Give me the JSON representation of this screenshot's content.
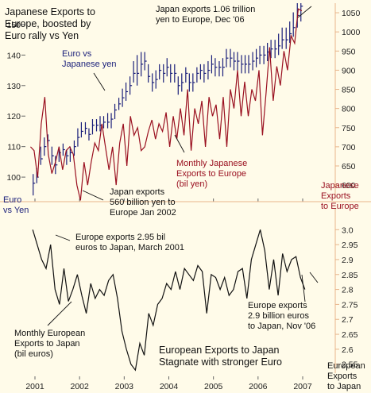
{
  "chart_data": [
    {
      "type": "line",
      "title": "Japanese Exports to Europe, boosted by Euro rally vs Yen",
      "x_ticks": [
        "2001",
        "2002",
        "2003",
        "2004",
        "2005",
        "2006",
        "2007"
      ],
      "left_axis": {
        "label": "Euro vs Yen",
        "ticks": [
          100,
          110,
          120,
          130,
          140,
          150
        ],
        "ylim": [
          93,
          157
        ]
      },
      "right_axis": {
        "label": "Japanese Exports to Europe",
        "ticks": [
          600,
          650,
          700,
          750,
          800,
          850,
          900,
          950,
          1000,
          1050
        ],
        "ylim": [
          565,
          1075
        ]
      },
      "series": [
        {
          "name": "Euro vs Japanese yen",
          "axis": "left",
          "color": "#1a1f7a",
          "style": "ohlc",
          "x": [
            2000.96,
            2001.04,
            2001.13,
            2001.21,
            2001.29,
            2001.38,
            2001.46,
            2001.54,
            2001.63,
            2001.71,
            2001.79,
            2001.88,
            2001.96,
            2002.04,
            2002.13,
            2002.21,
            2002.29,
            2002.38,
            2002.46,
            2002.54,
            2002.63,
            2002.71,
            2002.79,
            2002.88,
            2002.96,
            2003.04,
            2003.13,
            2003.21,
            2003.29,
            2003.38,
            2003.46,
            2003.54,
            2003.63,
            2003.71,
            2003.79,
            2003.88,
            2003.96,
            2004.04,
            2004.13,
            2004.21,
            2004.29,
            2004.38,
            2004.46,
            2004.54,
            2004.63,
            2004.71,
            2004.79,
            2004.88,
            2004.96,
            2005.04,
            2005.13,
            2005.21,
            2005.29,
            2005.38,
            2005.46,
            2005.54,
            2005.63,
            2005.71,
            2005.79,
            2005.88,
            2005.96,
            2006.04,
            2006.13,
            2006.21,
            2006.29,
            2006.38,
            2006.46,
            2006.54,
            2006.63,
            2006.71,
            2006.79,
            2006.88,
            2006.96
          ],
          "values": [
            98,
            100,
            106,
            110,
            112,
            107,
            104,
            108,
            109,
            107,
            108,
            110,
            113,
            115,
            116,
            114,
            117,
            117,
            117,
            118,
            118,
            119,
            122,
            124,
            126,
            128,
            130,
            134,
            134,
            137,
            138,
            133,
            131,
            132,
            135,
            134,
            136,
            134,
            134,
            130,
            131,
            134,
            131,
            131,
            134,
            135,
            134,
            135,
            137,
            136,
            136,
            136,
            139,
            139,
            138,
            138,
            137,
            137,
            137,
            138,
            139,
            140,
            140,
            141,
            142,
            142,
            143,
            145,
            145,
            147,
            149,
            153,
            156
          ],
          "range_high": [
            101,
            103,
            110,
            113,
            114,
            110,
            107,
            110,
            111,
            109,
            110,
            112,
            116,
            118,
            118,
            116,
            119,
            119,
            120,
            120,
            121,
            121,
            124,
            126,
            129,
            131,
            133,
            138,
            140,
            141,
            141,
            137,
            134,
            135,
            137,
            137,
            139,
            137,
            137,
            133,
            134,
            136,
            134,
            134,
            136,
            137,
            137,
            138,
            140,
            139,
            138,
            139,
            142,
            142,
            141,
            141,
            140,
            140,
            140,
            141,
            142,
            143,
            143,
            144,
            145,
            145,
            147,
            149,
            149,
            151,
            154,
            157,
            157
          ],
          "range_low": [
            94,
            98,
            104,
            107,
            110,
            104,
            101,
            105,
            107,
            104,
            105,
            107,
            110,
            113,
            114,
            112,
            114,
            115,
            115,
            116,
            116,
            116,
            119,
            122,
            123,
            125,
            127,
            131,
            130,
            133,
            135,
            131,
            128,
            129,
            132,
            131,
            133,
            131,
            131,
            127,
            128,
            131,
            128,
            128,
            131,
            132,
            131,
            132,
            134,
            133,
            133,
            133,
            136,
            136,
            135,
            135,
            134,
            134,
            134,
            135,
            136,
            137,
            137,
            138,
            139,
            139,
            140,
            142,
            142,
            144,
            146,
            149,
            151
          ]
        },
        {
          "name": "Monthly Japanese Exports to Europe (bil yen)",
          "axis": "right",
          "color": "#9a1020",
          "x": [
            2000.9,
            2000.98,
            2001.06,
            2001.14,
            2001.22,
            2001.3,
            2001.38,
            2001.46,
            2001.54,
            2001.62,
            2001.7,
            2001.78,
            2001.86,
            2001.94,
            2002.02,
            2002.1,
            2002.18,
            2002.26,
            2002.34,
            2002.42,
            2002.5,
            2002.58,
            2002.66,
            2002.74,
            2002.82,
            2002.9,
            2002.98,
            2003.06,
            2003.14,
            2003.22,
            2003.3,
            2003.38,
            2003.46,
            2003.54,
            2003.62,
            2003.7,
            2003.78,
            2003.86,
            2003.94,
            2004.02,
            2004.1,
            2004.18,
            2004.26,
            2004.34,
            2004.42,
            2004.5,
            2004.58,
            2004.66,
            2004.74,
            2004.82,
            2004.9,
            2004.98,
            2005.06,
            2005.14,
            2005.22,
            2005.3,
            2005.38,
            2005.46,
            2005.54,
            2005.62,
            2005.7,
            2005.78,
            2005.86,
            2005.94,
            2006.02,
            2006.1,
            2006.18,
            2006.26,
            2006.34,
            2006.42,
            2006.5,
            2006.58,
            2006.66,
            2006.74,
            2006.82,
            2006.9,
            2006.98
          ],
          "values": [
            700,
            690,
            620,
            760,
            830,
            680,
            630,
            660,
            700,
            640,
            690,
            700,
            680,
            600,
            560,
            660,
            600,
            660,
            710,
            690,
            760,
            700,
            640,
            700,
            600,
            710,
            760,
            650,
            780,
            730,
            750,
            690,
            700,
            740,
            770,
            720,
            760,
            740,
            790,
            700,
            780,
            720,
            800,
            730,
            850,
            690,
            800,
            760,
            820,
            700,
            830,
            780,
            810,
            720,
            830,
            700,
            850,
            800,
            900,
            780,
            870,
            780,
            850,
            820,
            900,
            730,
            840,
            960,
            820,
            910,
            860,
            950,
            900,
            990,
            970,
            1060,
            1055
          ]
        }
      ]
    },
    {
      "type": "line",
      "title": "European Exports to Japan Stagnate with stronger Euro",
      "x_ticks": [
        "2001",
        "2002",
        "2003",
        "2004",
        "2005",
        "2006",
        "2007"
      ],
      "right_axis": {
        "label": "European Exports to Japan",
        "ticks": [
          2.55,
          2.6,
          2.65,
          2.7,
          2.75,
          2.8,
          2.85,
          2.9,
          2.95,
          3.0
        ],
        "ylim": [
          2.52,
          3.03
        ]
      },
      "series": [
        {
          "name": "Monthly European Exports to Japan (bil euros)",
          "axis": "right",
          "color": "#111111",
          "x": [
            2000.95,
            2001.05,
            2001.15,
            2001.25,
            2001.35,
            2001.45,
            2001.55,
            2001.65,
            2001.75,
            2001.85,
            2001.95,
            2002.05,
            2002.15,
            2002.25,
            2002.35,
            2002.45,
            2002.55,
            2002.65,
            2002.75,
            2002.85,
            2002.95,
            2003.05,
            2003.15,
            2003.25,
            2003.35,
            2003.45,
            2003.55,
            2003.65,
            2003.75,
            2003.85,
            2003.95,
            2004.05,
            2004.15,
            2004.25,
            2004.35,
            2004.45,
            2004.55,
            2004.65,
            2004.75,
            2004.85,
            2004.95,
            2005.05,
            2005.15,
            2005.25,
            2005.35,
            2005.45,
            2005.55,
            2005.65,
            2005.75,
            2005.85,
            2005.95,
            2006.05,
            2006.15,
            2006.25,
            2006.35,
            2006.45,
            2006.55,
            2006.65,
            2006.75,
            2006.85,
            2006.95,
            2007.05
          ],
          "values": [
            3.0,
            2.95,
            2.9,
            2.87,
            2.95,
            2.8,
            2.75,
            2.87,
            2.76,
            2.8,
            2.85,
            2.78,
            2.72,
            2.82,
            2.77,
            2.8,
            2.78,
            2.83,
            2.85,
            2.77,
            2.66,
            2.6,
            2.55,
            2.53,
            2.62,
            2.58,
            2.72,
            2.68,
            2.75,
            2.77,
            2.82,
            2.8,
            2.86,
            2.8,
            2.87,
            2.85,
            2.83,
            2.88,
            2.86,
            2.72,
            2.85,
            2.84,
            2.8,
            2.84,
            2.78,
            2.8,
            2.86,
            2.87,
            2.77,
            2.9,
            2.95,
            3.0,
            2.93,
            2.8,
            2.9,
            2.78,
            2.92,
            2.86,
            2.9,
            2.91,
            2.84,
            2.8
          ]
        }
      ]
    }
  ],
  "annotations": {
    "top_title": "Japanese Exports to\nEurope, boosted by\nEuro rally vs Yen",
    "japan_peak": "Japan exports 1.06 trillion\nyen to Europe, Dec '06",
    "euro_label": "Euro vs\nJapanese yen",
    "jp_monthly": "Monthly Japanese\nExports to Europe\n(bil yen)",
    "jp_right_axis": "Japanese\nExports\nto Europe",
    "euro_vs_yen_axis": "Euro\nvs Yen",
    "japan_low": "Japan exports\n560 billion yen to\nEurope Jan 2002",
    "eu_march": "Europe exports 2.95 bil\neuros to Japan, March 2001",
    "eu_monthly": "Monthly European\nExports to Japan\n(bil euros)",
    "eu_nov": "Europe exports\n2.9 billion euros\nto Japan, Nov '06",
    "bottom_title": "European Exports to Japan\nStagnate with stronger Euro",
    "eu_right_axis": "European\nExports\nto Japan"
  },
  "colors": {
    "background": "#fffbe9",
    "euro_line": "#1a1f7a",
    "jp_exports": "#9a1020",
    "eu_exports": "#111111",
    "divider": "#e8b48a"
  }
}
